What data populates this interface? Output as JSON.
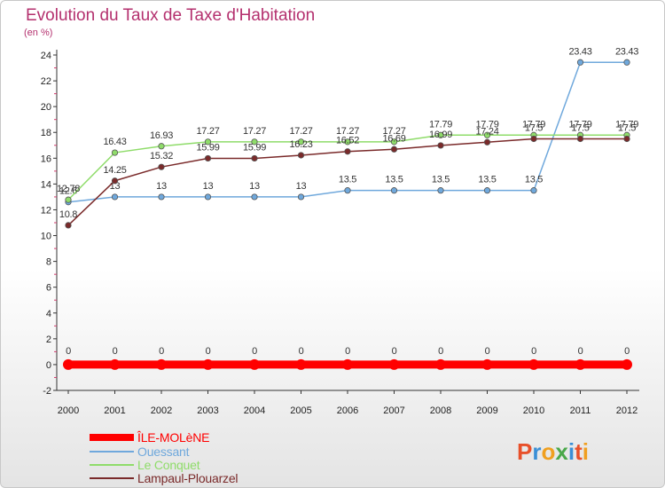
{
  "title": "Evolution du Taux de Taxe d'Habitation",
  "subtitle": "(en %)",
  "logo": "Proxiti",
  "chart_data": {
    "type": "line",
    "title": "Evolution du Taux de Taxe d'Habitation",
    "ylabel": "(en %)",
    "xlabel": "",
    "ylim": [
      -2,
      24
    ],
    "yticks": [
      -2,
      0,
      2,
      4,
      6,
      8,
      10,
      12,
      14,
      16,
      18,
      20,
      22,
      24
    ],
    "x": [
      "2000",
      "2001",
      "2002",
      "2003",
      "2004",
      "2005",
      "2006",
      "2007",
      "2008",
      "2009",
      "2010",
      "2011",
      "2012"
    ],
    "grid": false,
    "legend_position": "bottom-left",
    "series": [
      {
        "name": "ÎLE-MOLèNE",
        "color": "#ff0000",
        "values": [
          0,
          0,
          0,
          0,
          0,
          0,
          0,
          0,
          0,
          0,
          0,
          0,
          0
        ],
        "labels": [
          "0",
          "0",
          "0",
          "0",
          "0",
          "0",
          "0",
          "0",
          "0",
          "0",
          "0",
          "0",
          "0"
        ]
      },
      {
        "name": "Ouessant",
        "color": "#6fa8dc",
        "values": [
          12.6,
          13,
          13,
          13,
          13,
          13,
          13.5,
          13.5,
          13.5,
          13.5,
          13.5,
          23.43,
          23.43
        ],
        "labels": [
          "12.6",
          "13",
          "13",
          "13",
          "13",
          "13",
          "13.5",
          "13.5",
          "13.5",
          "13.5",
          "13.5",
          "23.43",
          "23.43"
        ]
      },
      {
        "name": "Le Conquet",
        "color": "#8fdc6a",
        "values": [
          12.78,
          16.43,
          16.93,
          17.27,
          17.27,
          17.27,
          17.27,
          17.27,
          17.79,
          17.79,
          17.79,
          17.79,
          17.79
        ],
        "labels": [
          "12.78",
          "16.43",
          "16.93",
          "17.27",
          "17.27",
          "17.27",
          "17.27",
          "17.27",
          "17.79",
          "17.79",
          "17.79",
          "17.79",
          "17.79"
        ]
      },
      {
        "name": "Lampaul-Plouarzel",
        "color": "#7a2a2a",
        "values": [
          10.8,
          14.25,
          15.32,
          15.99,
          15.99,
          16.23,
          16.52,
          16.69,
          16.99,
          17.24,
          17.5,
          17.5,
          17.5
        ],
        "labels": [
          "10.8",
          "14.25",
          "15.32",
          "15.99",
          "15.99",
          "16.23",
          "16.52",
          "16.69",
          "16.99",
          "17.24",
          "17.5",
          "17.5",
          "17.5"
        ]
      }
    ]
  }
}
